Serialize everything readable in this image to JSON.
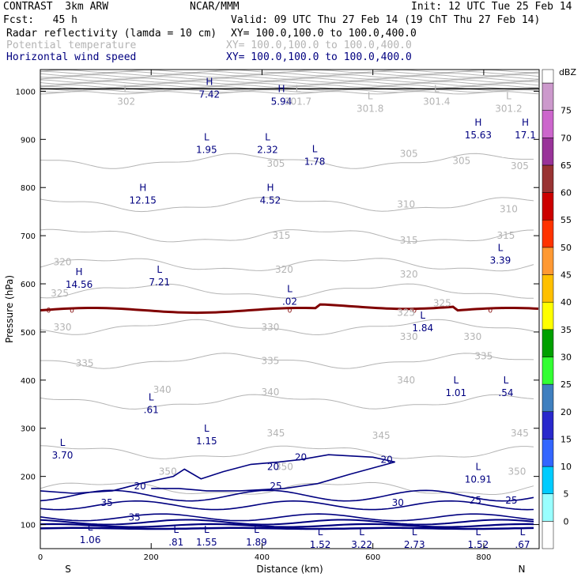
{
  "header": {
    "model": "CONTRAST  3km ARW",
    "org": "NCAR/MMM",
    "init": "Init: 12 UTC Tue 25 Feb 14",
    "fcst": "Fcst:   45 h",
    "valid": "Valid: 09 UTC Thu 27 Feb 14 (19 ChT Thu 27 Feb 14)",
    "fields": [
      {
        "name": "Radar reflectivity (lamda = 10 cm)",
        "xy": "XY= 100.0,100.0 to 100.0,400.0",
        "color": "#000000"
      },
      {
        "name": "Potential temperature",
        "xy": "XY= 100.0,100.0 to 100.0,400.0",
        "color": "#b4b4b4"
      },
      {
        "name": "Horizontal wind speed",
        "xy": "XY= 100.0,100.0 to 100.0,400.0",
        "color": "#000080"
      }
    ]
  },
  "chart_data": {
    "type": "contour-cross-section",
    "xlabel": "Distance (km)",
    "ylabel": "Pressure (hPa)",
    "xlim": [
      0,
      900
    ],
    "ylim": [
      1045,
      50
    ],
    "xticks": [
      0,
      200,
      400,
      600,
      800
    ],
    "yticks": [
      100,
      200,
      300,
      400,
      500,
      600,
      700,
      800,
      900,
      1000
    ],
    "x_end_labels": {
      "left": "S",
      "right": "N"
    },
    "colorbar": {
      "unit": "dBZ",
      "levels": [
        0,
        5,
        10,
        15,
        20,
        25,
        30,
        35,
        40,
        45,
        50,
        55,
        60,
        65,
        70,
        75
      ],
      "colors": [
        "#ffffff",
        "#99ffff",
        "#00ccff",
        "#3366ff",
        "#2929cc",
        "#3f7fbf",
        "#33ff33",
        "#00a000",
        "#ffff00",
        "#ffc000",
        "#ff9933",
        "#ff3300",
        "#cc0000",
        "#993333",
        "#993399",
        "#cc66cc",
        "#cc99cc"
      ]
    },
    "theta_labels": [
      {
        "x": 230,
        "p": 210,
        "v": "350"
      },
      {
        "x": 440,
        "p": 220,
        "v": "350"
      },
      {
        "x": 860,
        "p": 210,
        "v": "350"
      },
      {
        "x": 425,
        "p": 290,
        "v": "345"
      },
      {
        "x": 615,
        "p": 285,
        "v": "345"
      },
      {
        "x": 865,
        "p": 290,
        "v": "345"
      },
      {
        "x": 220,
        "p": 380,
        "v": "340"
      },
      {
        "x": 415,
        "p": 375,
        "v": "340"
      },
      {
        "x": 660,
        "p": 400,
        "v": "340"
      },
      {
        "x": 80,
        "p": 435,
        "v": "335"
      },
      {
        "x": 415,
        "p": 440,
        "v": "335"
      },
      {
        "x": 800,
        "p": 450,
        "v": "335"
      },
      {
        "x": 40,
        "p": 510,
        "v": "330"
      },
      {
        "x": 415,
        "p": 510,
        "v": "330"
      },
      {
        "x": 665,
        "p": 490,
        "v": "330"
      },
      {
        "x": 780,
        "p": 490,
        "v": "330"
      },
      {
        "x": 35,
        "p": 580,
        "v": "325"
      },
      {
        "x": 660,
        "p": 540,
        "v": "325"
      },
      {
        "x": 725,
        "p": 560,
        "v": "325"
      },
      {
        "x": 40,
        "p": 645,
        "v": "320"
      },
      {
        "x": 440,
        "p": 630,
        "v": "320"
      },
      {
        "x": 665,
        "p": 620,
        "v": "320"
      },
      {
        "x": 435,
        "p": 700,
        "v": "315"
      },
      {
        "x": 665,
        "p": 690,
        "v": "315"
      },
      {
        "x": 840,
        "p": 700,
        "v": "315"
      },
      {
        "x": 660,
        "p": 765,
        "v": "310"
      },
      {
        "x": 845,
        "p": 755,
        "v": "310"
      },
      {
        "x": 425,
        "p": 850,
        "v": "305"
      },
      {
        "x": 665,
        "p": 870,
        "v": "305"
      },
      {
        "x": 760,
        "p": 855,
        "v": "305"
      },
      {
        "x": 865,
        "p": 845,
        "v": "305"
      }
    ],
    "wind_labels": [
      {
        "x": 170,
        "p": 115,
        "v": "35"
      },
      {
        "x": 120,
        "p": 145,
        "v": "35"
      },
      {
        "x": 180,
        "p": 180,
        "v": "20"
      },
      {
        "x": 425,
        "p": 180,
        "v": "25"
      },
      {
        "x": 420,
        "p": 220,
        "v": "20"
      },
      {
        "x": 470,
        "p": 240,
        "v": "20"
      },
      {
        "x": 625,
        "p": 235,
        "v": "20"
      },
      {
        "x": 645,
        "p": 145,
        "v": "30"
      },
      {
        "x": 785,
        "p": 150,
        "v": "25"
      },
      {
        "x": 850,
        "p": 150,
        "v": "25"
      }
    ],
    "extrema_wind": [
      {
        "x": 90,
        "p": 75,
        "t": "L",
        "v": "1.06"
      },
      {
        "x": 245,
        "p": 70,
        "t": "L",
        "v": ".81"
      },
      {
        "x": 300,
        "p": 70,
        "t": "L",
        "v": "1.55"
      },
      {
        "x": 390,
        "p": 70,
        "t": "L",
        "v": "1.89"
      },
      {
        "x": 505,
        "p": 65,
        "t": "L",
        "v": "1.52"
      },
      {
        "x": 580,
        "p": 65,
        "t": "L",
        "v": "3.22"
      },
      {
        "x": 675,
        "p": 65,
        "t": "L",
        "v": "2.73"
      },
      {
        "x": 790,
        "p": 65,
        "t": "L",
        "v": "1.52"
      },
      {
        "x": 870,
        "p": 65,
        "t": "L",
        "v": ".67"
      },
      {
        "x": 790,
        "p": 200,
        "t": "L",
        "v": "10.91"
      },
      {
        "x": 40,
        "p": 250,
        "t": "L",
        "v": "3.70"
      },
      {
        "x": 300,
        "p": 280,
        "t": "L",
        "v": "1.15"
      },
      {
        "x": 200,
        "p": 345,
        "t": "L",
        "v": ".61"
      },
      {
        "x": 750,
        "p": 380,
        "t": "L",
        "v": "1.01"
      },
      {
        "x": 840,
        "p": 380,
        "t": "L",
        "v": ".54"
      },
      {
        "x": 690,
        "p": 515,
        "t": "L",
        "v": "1.84"
      },
      {
        "x": 450,
        "p": 570,
        "t": "L",
        "v": ".02"
      },
      {
        "x": 70,
        "p": 605,
        "t": "H",
        "v": "14.56"
      },
      {
        "x": 215,
        "p": 610,
        "t": "L",
        "v": "7.21"
      },
      {
        "x": 830,
        "p": 655,
        "t": "L",
        "v": "3.39"
      },
      {
        "x": 185,
        "p": 780,
        "t": "H",
        "v": "12.15"
      },
      {
        "x": 415,
        "p": 780,
        "t": "H",
        "v": "4.52"
      },
      {
        "x": 495,
        "p": 860,
        "t": "L",
        "v": "1.78"
      },
      {
        "x": 300,
        "p": 885,
        "t": "L",
        "v": "1.95"
      },
      {
        "x": 410,
        "p": 885,
        "t": "L",
        "v": "2.32"
      },
      {
        "x": 790,
        "p": 915,
        "t": "H",
        "v": "15.63"
      },
      {
        "x": 875,
        "p": 915,
        "t": "H",
        "v": "17.1"
      },
      {
        "x": 305,
        "p": 1000,
        "t": "H",
        "v": "7.42"
      },
      {
        "x": 435,
        "p": 985,
        "t": "H",
        "v": "5.94"
      }
    ],
    "extrema_theta": [
      {
        "x": 155,
        "p": 985,
        "t": "L",
        "v": "302"
      },
      {
        "x": 465,
        "p": 985,
        "t": "L",
        "v": "301.7"
      },
      {
        "x": 595,
        "p": 970,
        "t": "L",
        "v": "301.8"
      },
      {
        "x": 715,
        "p": 985,
        "t": "L",
        "v": "301.4"
      },
      {
        "x": 845,
        "p": 970,
        "t": "L",
        "v": "301.2"
      }
    ],
    "freezing_level": {
      "p": 545,
      "labels": [
        {
          "x": 15,
          "v": "0"
        },
        {
          "x": 57,
          "v": "0"
        },
        {
          "x": 450,
          "v": "0"
        },
        {
          "x": 675,
          "v": "0"
        },
        {
          "x": 812,
          "v": "0"
        }
      ]
    }
  }
}
